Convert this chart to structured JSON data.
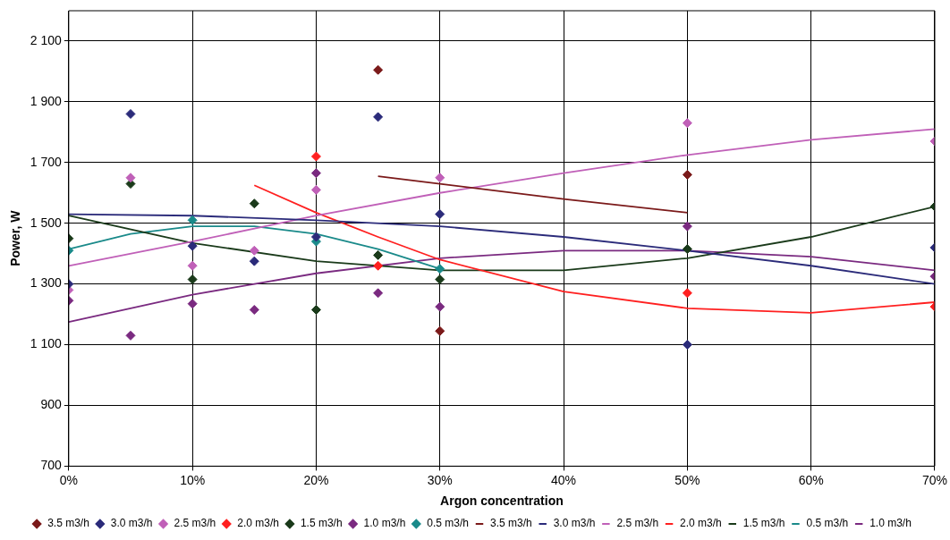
{
  "chart_data": {
    "type": "scatter",
    "xlabel": "Argon concentration",
    "ylabel": "Power, W",
    "xlim": [
      0,
      70
    ],
    "xticks": [
      {
        "value": 0,
        "label": "0%"
      },
      {
        "value": 10,
        "label": "10%"
      },
      {
        "value": 20,
        "label": "20%"
      },
      {
        "value": 30,
        "label": "30%"
      },
      {
        "value": 40,
        "label": "40%"
      },
      {
        "value": 50,
        "label": "50%"
      },
      {
        "value": 60,
        "label": "60%"
      },
      {
        "value": 70,
        "label": "70%"
      }
    ],
    "ylim": [
      700,
      2200
    ],
    "yticks": [
      700,
      900,
      {
        "value": 1100,
        "label": "1 100"
      },
      {
        "value": 1300,
        "label": "1 300"
      },
      {
        "value": 1500,
        "label": "1 500"
      },
      {
        "value": 1700,
        "label": "1 700"
      },
      {
        "value": 1900,
        "label": "1 900"
      },
      {
        "value": 2100,
        "label": "2 100"
      }
    ],
    "grid": true,
    "legend": "bottom",
    "marker": "diamond",
    "series": [
      {
        "name": "3.5 m3/h",
        "color": "#7b1a1a",
        "x": [
          25,
          30,
          50
        ],
        "values": [
          2005,
          1145,
          1660
        ]
      },
      {
        "name": "3.0 m3/h",
        "color": "#2b2b7a",
        "x": [
          0,
          5,
          10,
          15,
          20,
          25,
          30,
          50,
          70
        ],
        "values": [
          1300,
          1860,
          1425,
          1375,
          1455,
          1850,
          1530,
          1100,
          1420
        ]
      },
      {
        "name": "2.5 m3/h",
        "color": "#c060b8",
        "x": [
          0,
          5,
          10,
          15,
          20,
          30,
          50,
          70
        ],
        "values": [
          1280,
          1650,
          1360,
          1410,
          1610,
          1650,
          1830,
          1770
        ]
      },
      {
        "name": "2.0 m3/h",
        "color": "#ff2020",
        "x": [
          20,
          25,
          50,
          70
        ],
        "values": [
          1720,
          1360,
          1270,
          1225
        ]
      },
      {
        "name": "1.5 m3/h",
        "color": "#1a3a1a",
        "x": [
          0,
          5,
          10,
          15,
          20,
          25,
          30,
          50,
          70
        ],
        "values": [
          1450,
          1630,
          1315,
          1565,
          1215,
          1395,
          1315,
          1415,
          1555
        ]
      },
      {
        "name": "1.0 m3/h",
        "color": "#7a2a80",
        "x": [
          0,
          5,
          10,
          15,
          20,
          25,
          30,
          50,
          70
        ],
        "values": [
          1245,
          1130,
          1235,
          1215,
          1665,
          1270,
          1225,
          1490,
          1325
        ]
      },
      {
        "name": "0.5 m3/h",
        "color": "#1a8a8a",
        "x": [
          0,
          10,
          20,
          30
        ],
        "values": [
          1410,
          1510,
          1440,
          1350
        ]
      },
      {
        "name": "3.5 m3/h",
        "type": "line",
        "marker": "none",
        "color": "#7b1a1a",
        "x": [
          25,
          30,
          40,
          50
        ],
        "values": [
          1655,
          1630,
          1580,
          1535
        ]
      },
      {
        "name": "3.0 m3/h",
        "type": "line",
        "marker": "none",
        "color": "#2b2b7a",
        "x": [
          0,
          10,
          20,
          30,
          40,
          50,
          60,
          70
        ],
        "values": [
          1530,
          1525,
          1510,
          1490,
          1455,
          1410,
          1360,
          1300
        ]
      },
      {
        "name": "2.5 m3/h",
        "type": "line",
        "marker": "none",
        "color": "#c060b8",
        "x": [
          0,
          10,
          20,
          30,
          40,
          50,
          60,
          70
        ],
        "values": [
          1360,
          1440,
          1525,
          1600,
          1665,
          1725,
          1775,
          1810
        ]
      },
      {
        "name": "2.0 m3/h",
        "type": "line",
        "marker": "none",
        "color": "#ff2020",
        "x": [
          15,
          20,
          25,
          30,
          40,
          50,
          60,
          70
        ],
        "values": [
          1625,
          1535,
          1455,
          1380,
          1275,
          1220,
          1205,
          1240
        ]
      },
      {
        "name": "1.5 m3/h",
        "type": "line",
        "marker": "none",
        "color": "#1a3a1a",
        "x": [
          0,
          10,
          20,
          30,
          40,
          50,
          60,
          70
        ],
        "values": [
          1525,
          1435,
          1375,
          1345,
          1345,
          1385,
          1455,
          1555
        ]
      },
      {
        "name": "0.5 m3/h",
        "type": "line",
        "marker": "none",
        "color": "#1a8a8a",
        "x": [
          0,
          5,
          10,
          15,
          20,
          25,
          30
        ],
        "values": [
          1415,
          1465,
          1490,
          1490,
          1465,
          1415,
          1350
        ]
      },
      {
        "name": "1.0 m3/h",
        "type": "line",
        "marker": "none",
        "color": "#7a2a80",
        "x": [
          0,
          10,
          20,
          30,
          40,
          50,
          60,
          70
        ],
        "values": [
          1175,
          1265,
          1335,
          1385,
          1410,
          1410,
          1390,
          1345
        ]
      }
    ]
  }
}
